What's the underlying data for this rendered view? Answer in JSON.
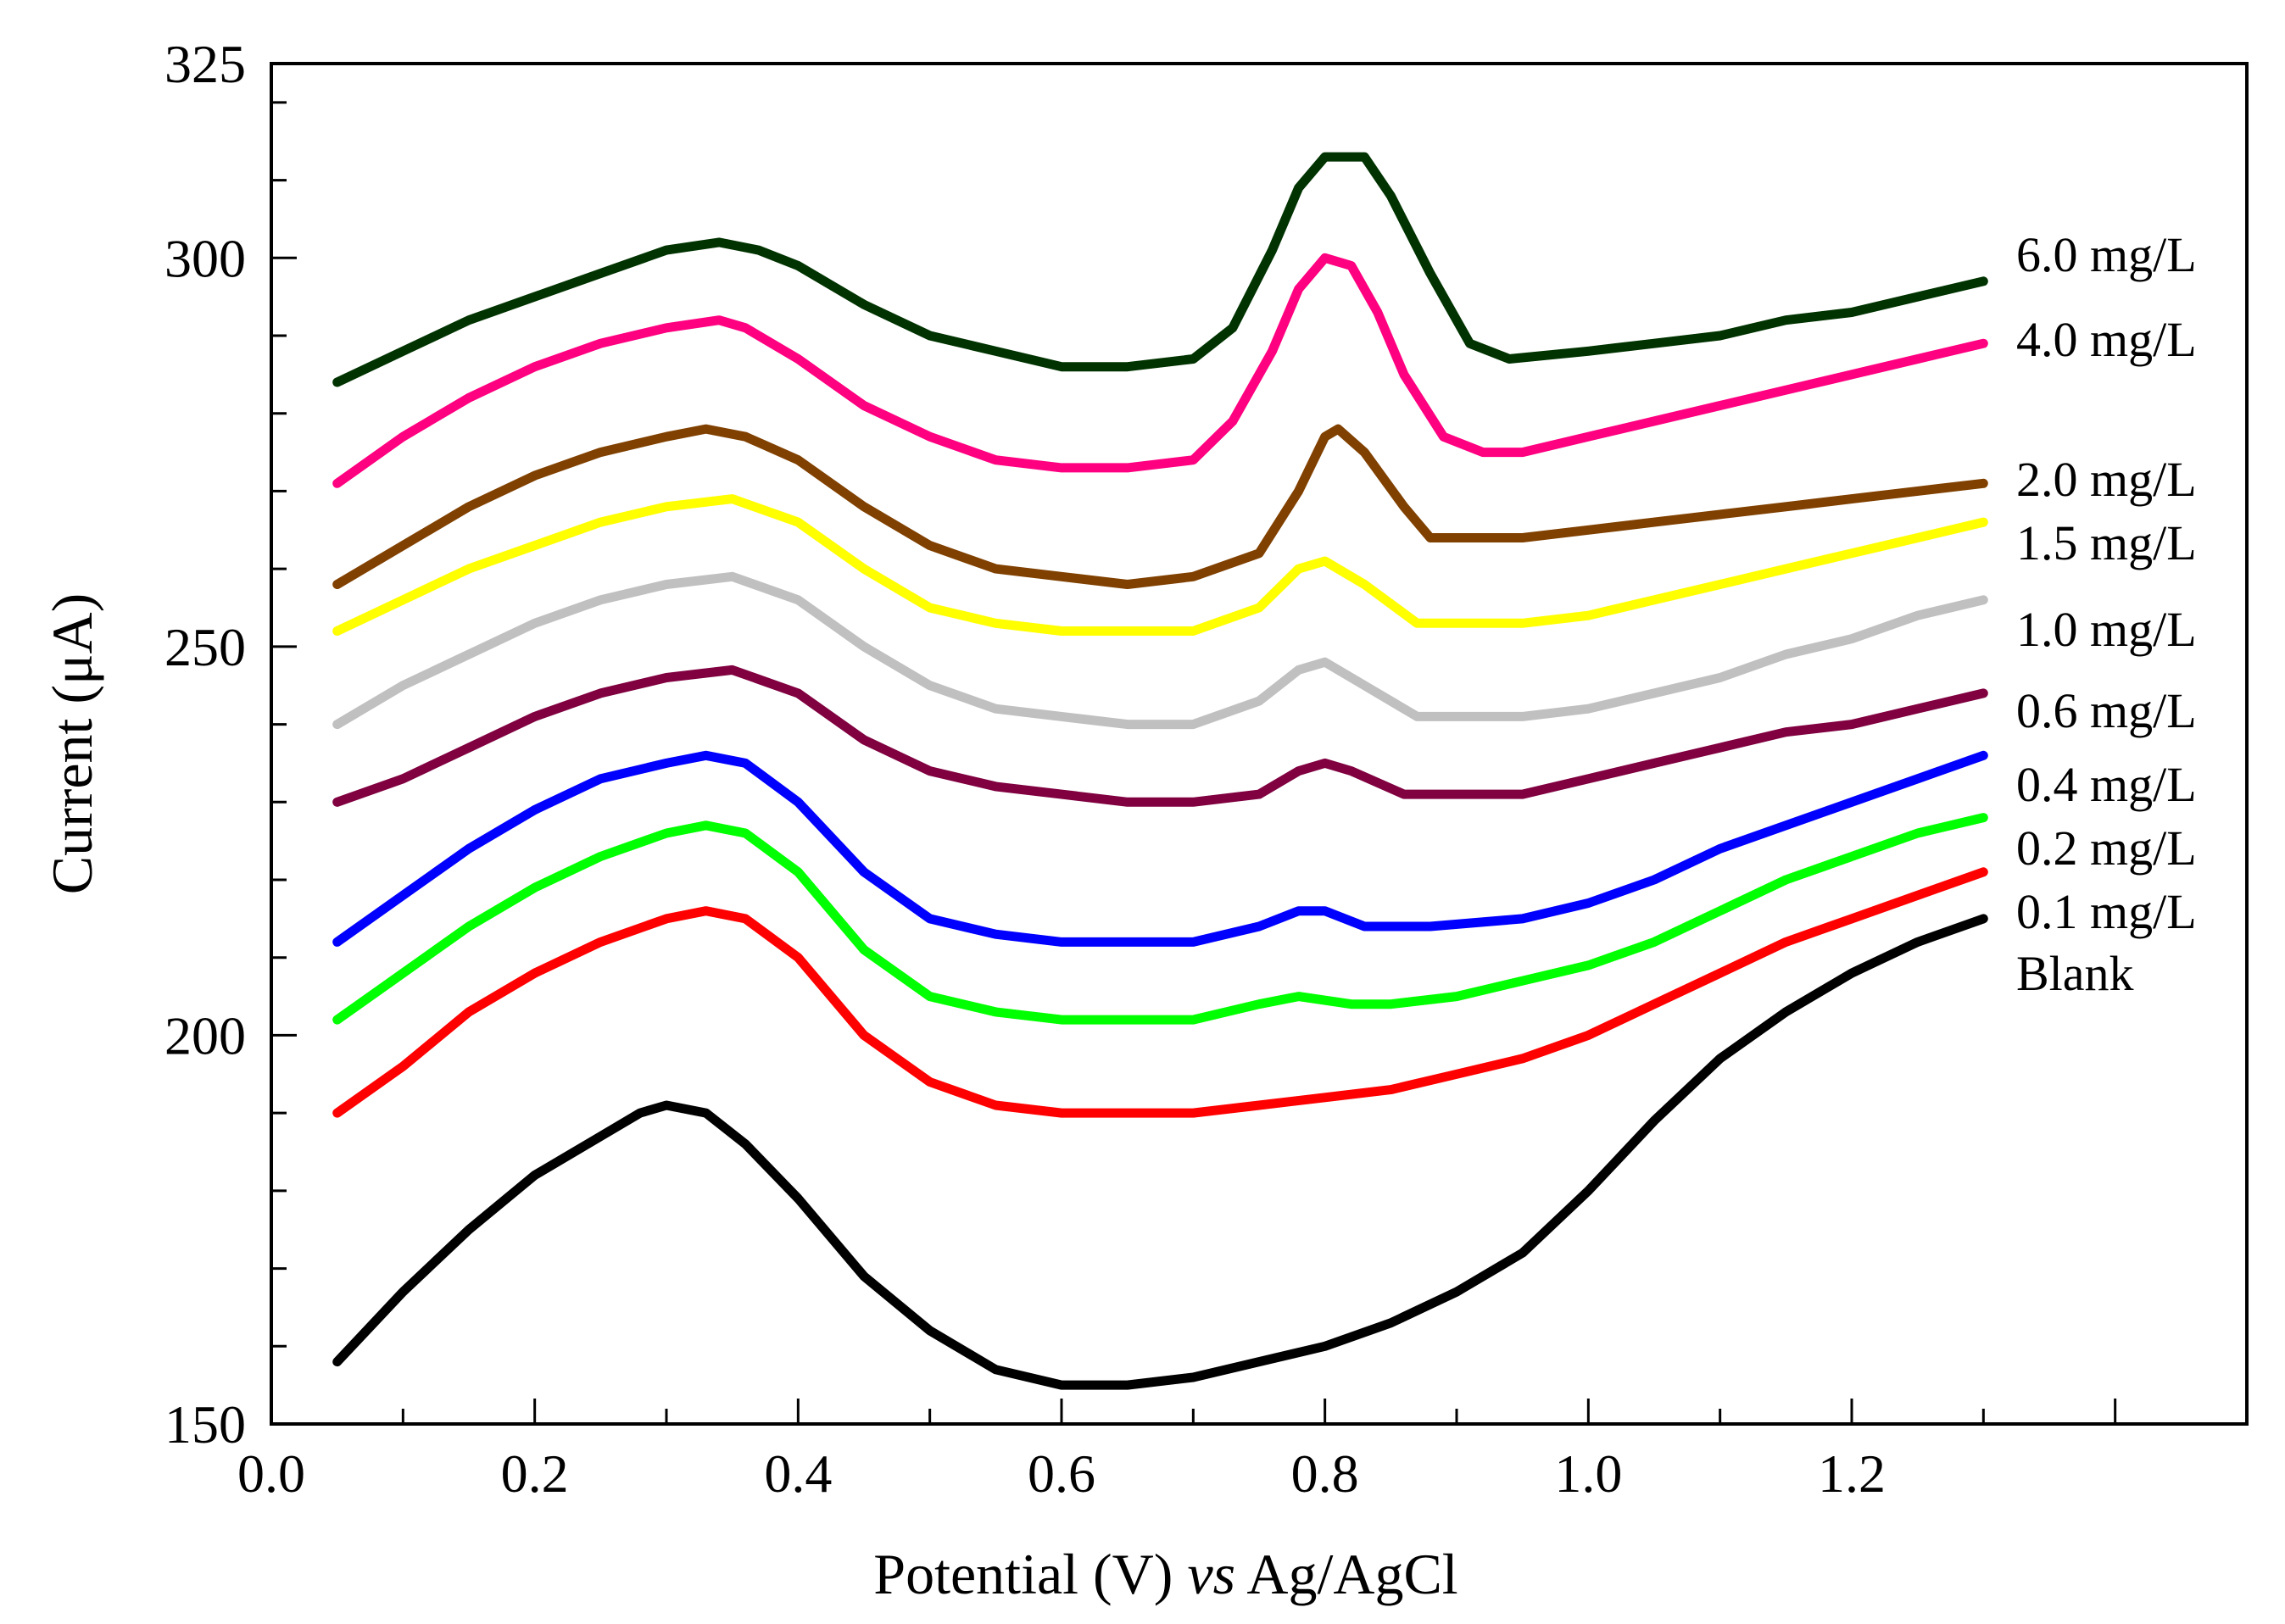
{
  "chart_data": {
    "type": "line",
    "title": "",
    "xlabel_parts": [
      {
        "text": "Potential (V) ",
        "italic": false
      },
      {
        "text": "vs",
        "italic": true
      },
      {
        "text": " Ag/AgCl",
        "italic": false
      }
    ],
    "ylabel": "Current (μA)",
    "xlim": [
      0.0,
      1.5
    ],
    "ylim": [
      150,
      325
    ],
    "x_ticks": [
      "0.0",
      "0.2",
      "0.4",
      "0.6",
      "0.8",
      "1.0",
      "1.2"
    ],
    "y_ticks": [
      "150",
      "200",
      "250",
      "300",
      "325"
    ],
    "grid": false,
    "legend": "right-inline",
    "series": [
      {
        "name": "Blank",
        "color": "#000000",
        "points": [
          [
            0.05,
            158
          ],
          [
            0.1,
            167
          ],
          [
            0.15,
            175
          ],
          [
            0.2,
            182
          ],
          [
            0.25,
            187
          ],
          [
            0.28,
            190
          ],
          [
            0.3,
            191
          ],
          [
            0.33,
            190
          ],
          [
            0.36,
            186
          ],
          [
            0.4,
            179
          ],
          [
            0.45,
            169
          ],
          [
            0.5,
            162
          ],
          [
            0.55,
            157
          ],
          [
            0.6,
            155
          ],
          [
            0.65,
            155
          ],
          [
            0.7,
            156
          ],
          [
            0.75,
            158
          ],
          [
            0.8,
            160
          ],
          [
            0.85,
            163
          ],
          [
            0.9,
            167
          ],
          [
            0.95,
            172
          ],
          [
            1.0,
            180
          ],
          [
            1.05,
            189
          ],
          [
            1.1,
            197
          ],
          [
            1.15,
            203
          ],
          [
            1.2,
            208
          ],
          [
            1.25,
            212
          ],
          [
            1.3,
            215
          ]
        ]
      },
      {
        "name": "0.1 mg/L",
        "color": "#ff0000",
        "points": [
          [
            0.05,
            190
          ],
          [
            0.1,
            196
          ],
          [
            0.15,
            203
          ],
          [
            0.2,
            208
          ],
          [
            0.25,
            212
          ],
          [
            0.3,
            215
          ],
          [
            0.33,
            216
          ],
          [
            0.36,
            215
          ],
          [
            0.4,
            210
          ],
          [
            0.45,
            200
          ],
          [
            0.5,
            194
          ],
          [
            0.55,
            191
          ],
          [
            0.6,
            190
          ],
          [
            0.65,
            190
          ],
          [
            0.7,
            190
          ],
          [
            0.75,
            191
          ],
          [
            0.8,
            192
          ],
          [
            0.85,
            193
          ],
          [
            0.9,
            195
          ],
          [
            0.95,
            197
          ],
          [
            1.0,
            200
          ],
          [
            1.05,
            204
          ],
          [
            1.1,
            208
          ],
          [
            1.15,
            212
          ],
          [
            1.2,
            215
          ],
          [
            1.25,
            218
          ],
          [
            1.3,
            221
          ]
        ]
      },
      {
        "name": "0.2 mg/L",
        "color": "#00ff00",
        "points": [
          [
            0.05,
            202
          ],
          [
            0.1,
            208
          ],
          [
            0.15,
            214
          ],
          [
            0.2,
            219
          ],
          [
            0.25,
            223
          ],
          [
            0.3,
            226
          ],
          [
            0.33,
            227
          ],
          [
            0.36,
            226
          ],
          [
            0.4,
            221
          ],
          [
            0.45,
            211
          ],
          [
            0.5,
            205
          ],
          [
            0.55,
            203
          ],
          [
            0.6,
            202
          ],
          [
            0.65,
            202
          ],
          [
            0.7,
            202
          ],
          [
            0.75,
            204
          ],
          [
            0.78,
            205
          ],
          [
            0.82,
            204
          ],
          [
            0.85,
            204
          ],
          [
            0.9,
            205
          ],
          [
            0.95,
            207
          ],
          [
            1.0,
            209
          ],
          [
            1.05,
            212
          ],
          [
            1.1,
            216
          ],
          [
            1.15,
            220
          ],
          [
            1.2,
            223
          ],
          [
            1.25,
            226
          ],
          [
            1.3,
            228
          ]
        ]
      },
      {
        "name": "0.4 mg/L",
        "color": "#0000ff",
        "points": [
          [
            0.05,
            212
          ],
          [
            0.1,
            218
          ],
          [
            0.15,
            224
          ],
          [
            0.2,
            229
          ],
          [
            0.25,
            233
          ],
          [
            0.3,
            235
          ],
          [
            0.33,
            236
          ],
          [
            0.36,
            235
          ],
          [
            0.4,
            230
          ],
          [
            0.45,
            221
          ],
          [
            0.5,
            215
          ],
          [
            0.55,
            213
          ],
          [
            0.6,
            212
          ],
          [
            0.65,
            212
          ],
          [
            0.7,
            212
          ],
          [
            0.75,
            214
          ],
          [
            0.78,
            216
          ],
          [
            0.8,
            216
          ],
          [
            0.83,
            214
          ],
          [
            0.88,
            214
          ],
          [
            0.95,
            215
          ],
          [
            1.0,
            217
          ],
          [
            1.05,
            220
          ],
          [
            1.1,
            224
          ],
          [
            1.15,
            227
          ],
          [
            1.2,
            230
          ],
          [
            1.25,
            233
          ],
          [
            1.3,
            236
          ]
        ]
      },
      {
        "name": "0.6 mg/L",
        "color": "#800040",
        "points": [
          [
            0.05,
            230
          ],
          [
            0.1,
            233
          ],
          [
            0.15,
            237
          ],
          [
            0.2,
            241
          ],
          [
            0.25,
            244
          ],
          [
            0.3,
            246
          ],
          [
            0.35,
            247
          ],
          [
            0.4,
            244
          ],
          [
            0.45,
            238
          ],
          [
            0.5,
            234
          ],
          [
            0.55,
            232
          ],
          [
            0.6,
            231
          ],
          [
            0.65,
            230
          ],
          [
            0.7,
            230
          ],
          [
            0.75,
            231
          ],
          [
            0.78,
            234
          ],
          [
            0.8,
            235
          ],
          [
            0.82,
            234
          ],
          [
            0.86,
            231
          ],
          [
            0.9,
            231
          ],
          [
            0.95,
            231
          ],
          [
            1.0,
            233
          ],
          [
            1.05,
            235
          ],
          [
            1.1,
            237
          ],
          [
            1.15,
            239
          ],
          [
            1.2,
            240
          ],
          [
            1.25,
            242
          ],
          [
            1.3,
            244
          ]
        ]
      },
      {
        "name": "1.0 mg/L",
        "color": "#c0c0c0",
        "points": [
          [
            0.05,
            240
          ],
          [
            0.1,
            245
          ],
          [
            0.15,
            249
          ],
          [
            0.2,
            253
          ],
          [
            0.25,
            256
          ],
          [
            0.3,
            258
          ],
          [
            0.35,
            259
          ],
          [
            0.4,
            256
          ],
          [
            0.45,
            250
          ],
          [
            0.5,
            245
          ],
          [
            0.55,
            242
          ],
          [
            0.6,
            241
          ],
          [
            0.65,
            240
          ],
          [
            0.7,
            240
          ],
          [
            0.75,
            243
          ],
          [
            0.78,
            247
          ],
          [
            0.8,
            248
          ],
          [
            0.83,
            245
          ],
          [
            0.87,
            241
          ],
          [
            0.9,
            241
          ],
          [
            0.95,
            241
          ],
          [
            1.0,
            242
          ],
          [
            1.05,
            244
          ],
          [
            1.1,
            246
          ],
          [
            1.15,
            249
          ],
          [
            1.2,
            251
          ],
          [
            1.25,
            254
          ],
          [
            1.3,
            256
          ]
        ]
      },
      {
        "name": "1.5 mg/L",
        "color": "#ffff00",
        "points": [
          [
            0.05,
            252
          ],
          [
            0.1,
            256
          ],
          [
            0.15,
            260
          ],
          [
            0.2,
            263
          ],
          [
            0.25,
            266
          ],
          [
            0.3,
            268
          ],
          [
            0.35,
            269
          ],
          [
            0.4,
            266
          ],
          [
            0.45,
            260
          ],
          [
            0.5,
            255
          ],
          [
            0.55,
            253
          ],
          [
            0.6,
            252
          ],
          [
            0.65,
            252
          ],
          [
            0.7,
            252
          ],
          [
            0.75,
            255
          ],
          [
            0.78,
            260
          ],
          [
            0.8,
            261
          ],
          [
            0.83,
            258
          ],
          [
            0.87,
            253
          ],
          [
            0.9,
            253
          ],
          [
            0.95,
            253
          ],
          [
            1.0,
            254
          ],
          [
            1.05,
            256
          ],
          [
            1.1,
            258
          ],
          [
            1.15,
            260
          ],
          [
            1.2,
            262
          ],
          [
            1.25,
            264
          ],
          [
            1.3,
            266
          ]
        ]
      },
      {
        "name": "2.0 mg/L",
        "color": "#804000",
        "points": [
          [
            0.05,
            258
          ],
          [
            0.1,
            263
          ],
          [
            0.15,
            268
          ],
          [
            0.2,
            272
          ],
          [
            0.25,
            275
          ],
          [
            0.3,
            277
          ],
          [
            0.33,
            278
          ],
          [
            0.36,
            277
          ],
          [
            0.4,
            274
          ],
          [
            0.45,
            268
          ],
          [
            0.5,
            263
          ],
          [
            0.55,
            260
          ],
          [
            0.6,
            259
          ],
          [
            0.65,
            258
          ],
          [
            0.7,
            259
          ],
          [
            0.75,
            262
          ],
          [
            0.78,
            270
          ],
          [
            0.8,
            277
          ],
          [
            0.81,
            278
          ],
          [
            0.83,
            275
          ],
          [
            0.86,
            268
          ],
          [
            0.88,
            264
          ],
          [
            0.95,
            264
          ],
          [
            1.0,
            265
          ],
          [
            1.05,
            266
          ],
          [
            1.1,
            267
          ],
          [
            1.15,
            268
          ],
          [
            1.2,
            269
          ],
          [
            1.25,
            270
          ],
          [
            1.3,
            271
          ]
        ]
      },
      {
        "name": "4.0 mg/L",
        "color": "#ff0080",
        "points": [
          [
            0.05,
            271
          ],
          [
            0.1,
            277
          ],
          [
            0.15,
            282
          ],
          [
            0.2,
            286
          ],
          [
            0.25,
            289
          ],
          [
            0.3,
            291
          ],
          [
            0.34,
            292
          ],
          [
            0.36,
            291
          ],
          [
            0.4,
            287
          ],
          [
            0.45,
            281
          ],
          [
            0.5,
            277
          ],
          [
            0.55,
            274
          ],
          [
            0.6,
            273
          ],
          [
            0.65,
            273
          ],
          [
            0.7,
            274
          ],
          [
            0.73,
            279
          ],
          [
            0.76,
            288
          ],
          [
            0.78,
            296
          ],
          [
            0.8,
            300
          ],
          [
            0.82,
            299
          ],
          [
            0.84,
            293
          ],
          [
            0.86,
            285
          ],
          [
            0.89,
            277
          ],
          [
            0.92,
            275
          ],
          [
            0.95,
            275
          ],
          [
            1.0,
            277
          ],
          [
            1.05,
            279
          ],
          [
            1.1,
            281
          ],
          [
            1.15,
            283
          ],
          [
            1.2,
            285
          ],
          [
            1.25,
            287
          ],
          [
            1.3,
            289
          ]
        ]
      },
      {
        "name": "6.0 mg/L",
        "color": "#003300",
        "points": [
          [
            0.05,
            284
          ],
          [
            0.1,
            288
          ],
          [
            0.15,
            292
          ],
          [
            0.2,
            295
          ],
          [
            0.25,
            298
          ],
          [
            0.3,
            301
          ],
          [
            0.34,
            302
          ],
          [
            0.37,
            301
          ],
          [
            0.4,
            299
          ],
          [
            0.45,
            294
          ],
          [
            0.5,
            290
          ],
          [
            0.55,
            288
          ],
          [
            0.6,
            286
          ],
          [
            0.65,
            286
          ],
          [
            0.7,
            287
          ],
          [
            0.73,
            291
          ],
          [
            0.76,
            301
          ],
          [
            0.78,
            309
          ],
          [
            0.8,
            313
          ],
          [
            0.83,
            313
          ],
          [
            0.85,
            308
          ],
          [
            0.88,
            298
          ],
          [
            0.91,
            289
          ],
          [
            0.94,
            287
          ],
          [
            1.0,
            288
          ],
          [
            1.05,
            289
          ],
          [
            1.1,
            290
          ],
          [
            1.15,
            292
          ],
          [
            1.2,
            293
          ],
          [
            1.25,
            295
          ],
          [
            1.3,
            297
          ]
        ]
      }
    ]
  }
}
